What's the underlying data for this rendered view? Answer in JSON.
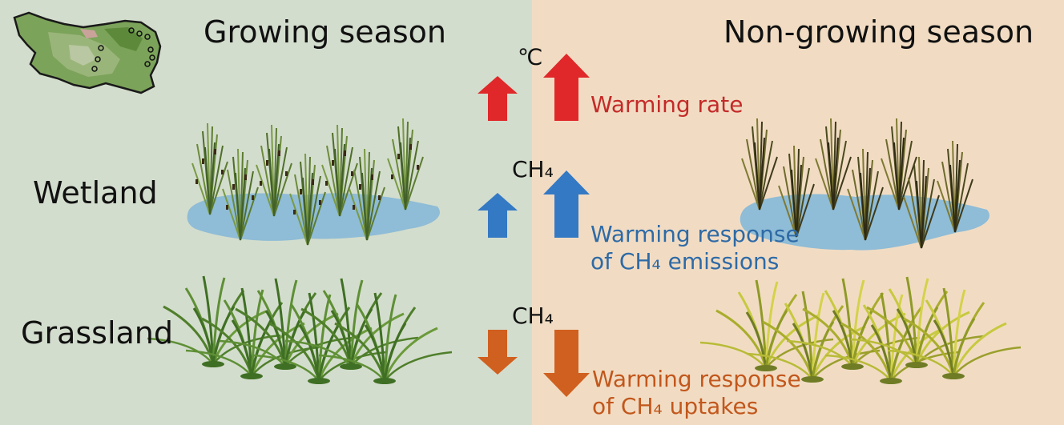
{
  "headers": {
    "growing": "Growing season",
    "non_growing": "Non-growing season"
  },
  "rows": {
    "wetland": "Wetland",
    "grassland": "Grassland"
  },
  "units": {
    "temperature": "℃",
    "ch4_wetland": "CH₄",
    "ch4_grassland": "CH₄"
  },
  "annotations": {
    "warming_rate": "Warming rate",
    "wetland_line1": "Warming response",
    "wetland_line2": "of CH₄ emissions",
    "grassland_line1": "Warming response",
    "grassland_line2": "of CH₄ uptakes"
  },
  "colors": {
    "growing_bg": "#d3ddcd",
    "non_growing_bg": "#f1dcc3",
    "warming_rate": "#e0282a",
    "emissions": "#3479c4",
    "uptakes": "#d0601f"
  },
  "comparison": {
    "warming_rate": {
      "direction": "increase",
      "growing": "small",
      "non_growing": "large"
    },
    "ch4_emissions": {
      "direction": "increase",
      "growing": "small",
      "non_growing": "large"
    },
    "ch4_uptakes": {
      "direction": "decrease",
      "growing": "small",
      "non_growing": "large"
    }
  }
}
